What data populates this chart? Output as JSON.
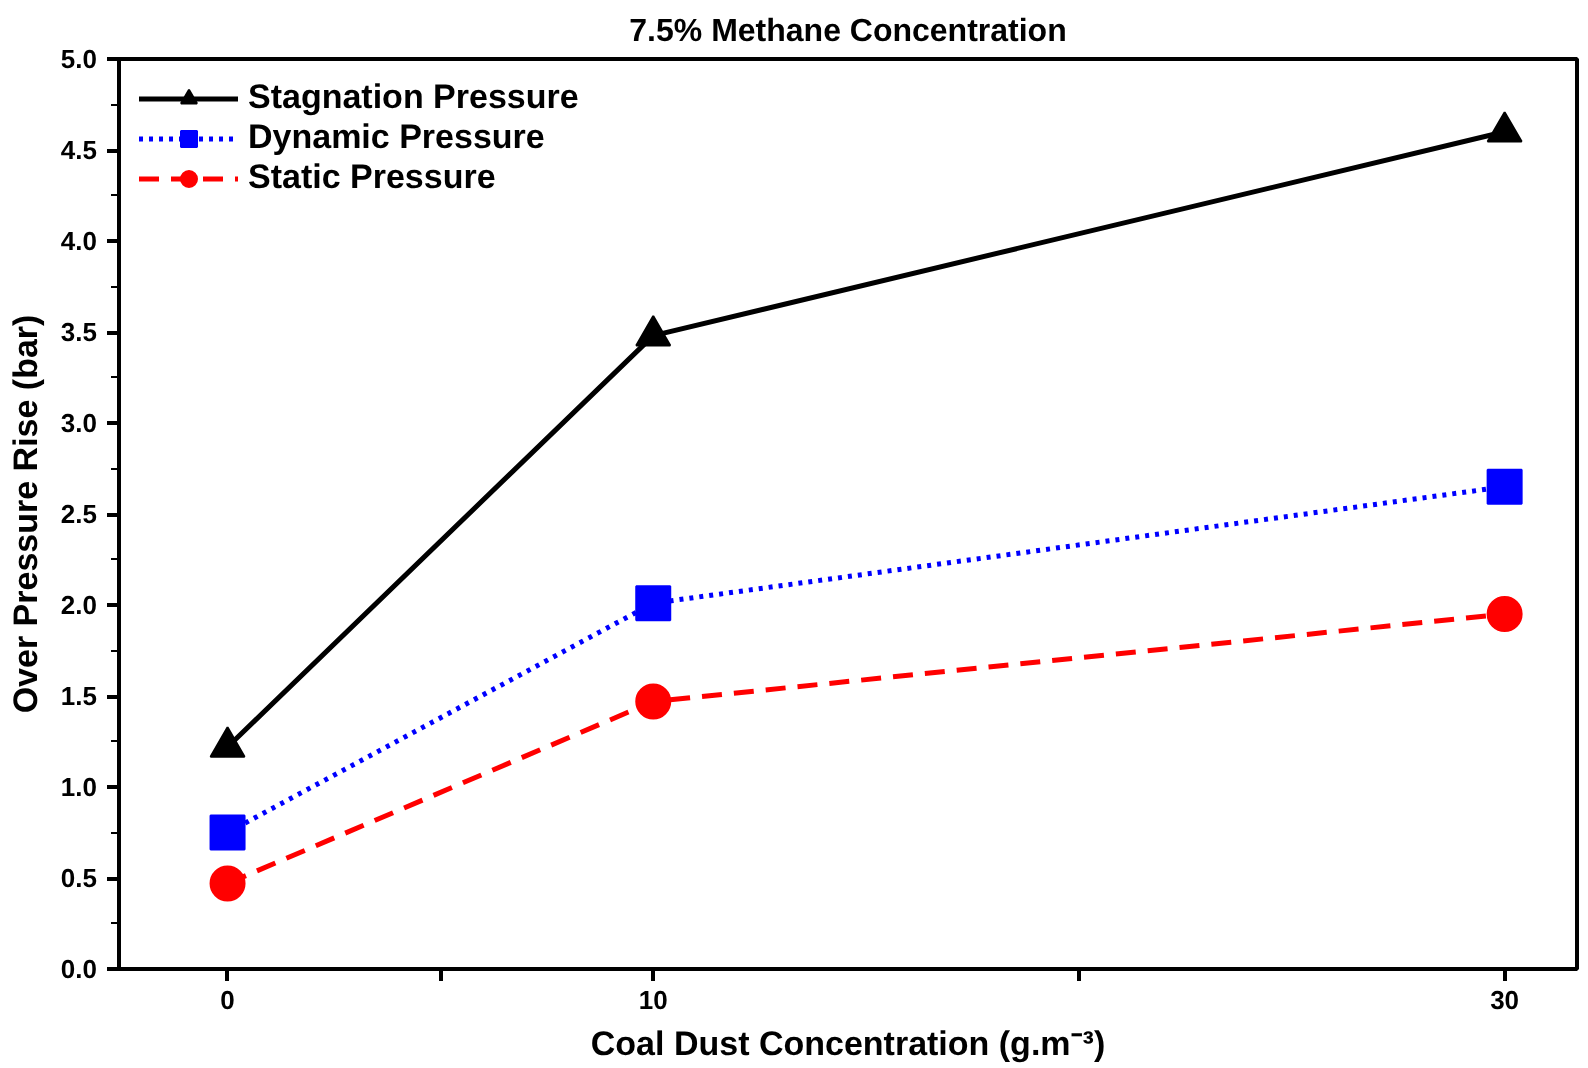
{
  "chart_data": {
    "type": "line",
    "title": "7.5% Methane Concentration",
    "xlabel": "Coal Dust Concentration (g.m⁻³)",
    "ylabel": "Over Pressure Rise (bar)",
    "x": [
      0,
      10,
      30
    ],
    "xlim": [
      -2.55,
      31.7
    ],
    "xticks": [
      0,
      {
        "value": 5,
        "label": null
      },
      10,
      {
        "value": 20,
        "label": null
      },
      30
    ],
    "ylim": [
      0,
      5
    ],
    "yticks": [
      {
        "value": 0,
        "label": "0.0"
      },
      0.5,
      {
        "value": 1,
        "label": "1.0"
      },
      1.5,
      {
        "value": 2,
        "label": "2.0"
      },
      2.5,
      {
        "value": 3,
        "label": "3.0"
      },
      3.5,
      {
        "value": 4,
        "label": "4.0"
      },
      4.5,
      {
        "value": 5,
        "label": "5.0"
      }
    ],
    "legend": "top left",
    "grid": false,
    "series": [
      {
        "name": "Stagnation Pressure",
        "color": "#000000",
        "marker": "triangle",
        "line_style": "solid",
        "values": [
          1.22,
          3.48,
          4.6
        ]
      },
      {
        "name": "Dynamic Pressure",
        "color": "#0000ff",
        "marker": "square",
        "line_style": "dotted",
        "values": [
          0.75,
          2.01,
          2.65
        ]
      },
      {
        "name": "Static Pressure",
        "color": "#ff0000",
        "marker": "circle",
        "line_style": "dashed",
        "values": [
          0.47,
          1.47,
          1.95
        ]
      }
    ]
  }
}
